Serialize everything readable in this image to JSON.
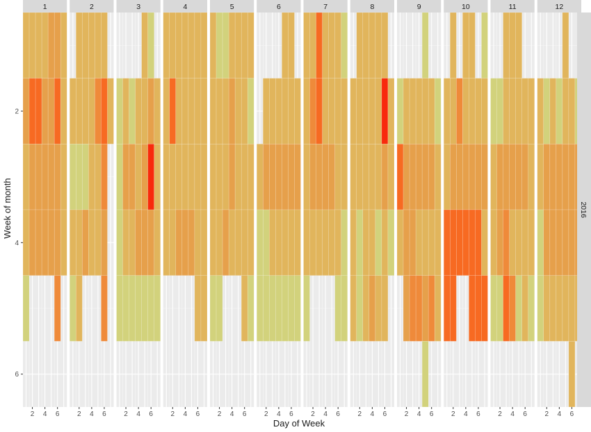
{
  "chart_data": {
    "type": "heatmap",
    "title": "",
    "xlabel": "Day of Week",
    "ylabel": "Week of month",
    "x_range": [
      0.5,
      7.5
    ],
    "y_range": [
      0.5,
      6.5
    ],
    "y_reversed": true,
    "x_ticks": [
      2,
      4,
      6
    ],
    "y_ticks": [
      2,
      4,
      6
    ],
    "grid": true,
    "legend": "none",
    "row_strip_label": "2016",
    "palette": {
      "0": "#bfe08a",
      "1": "#d2d27c",
      "2": "#e1b55c",
      "3": "#e6a04b",
      "4": "#ef8a3a",
      "5": "#f76a22",
      "6": "#f82a0c"
    },
    "panels": [
      {
        "label": "1",
        "grid": [
          "2222332",
          "3553352",
          "2333332",
          "2333332",
          "1000040",
          "0000000"
        ]
      },
      {
        "label": "2",
        "grid": [
          "0222220",
          "2222452",
          "1112240",
          "2232230",
          "1200040",
          "0000000"
        ]
      },
      {
        "label": "3",
        "grid": [
          "0000210",
          "1212232",
          "1332362",
          "1223332",
          "1111111",
          "0000000"
        ]
      },
      {
        "label": "4",
        "grid": [
          "2222222",
          "2522222",
          "2222222",
          "2233322",
          "0000022",
          "0000000"
        ]
      },
      {
        "label": "5",
        "grid": [
          "2112222",
          "2223221",
          "2223222",
          "2232222",
          "1100021",
          "0000000"
        ]
      },
      {
        "label": "6",
        "grid": [
          "0000220",
          "0222222",
          "2333333",
          "1122222",
          "1111111",
          "0000000"
        ]
      },
      {
        "label": "7",
        "grid": [
          "2252221",
          "2452222",
          "2333322",
          "2222221",
          "1000011",
          "0000000"
        ]
      },
      {
        "label": "8",
        "grid": [
          "0222220",
          "2222262",
          "2222232",
          "2122121",
          "2123220",
          "0000000"
        ]
      },
      {
        "label": "9",
        "grid": [
          "0000100",
          "1222221",
          "5333332",
          "2332222",
          "0344342",
          "0000100"
        ]
      },
      {
        "label": "10",
        "grid": [
          "0202201",
          "2242222",
          "2333333",
          "5555552",
          "5500555",
          "0000000"
        ]
      },
      {
        "label": "11",
        "grid": [
          "0022200",
          "1122222",
          "2333332",
          "2342222",
          "1154121",
          "0000000"
        ]
      },
      {
        "label": "12",
        "grid": [
          "0000200",
          "2121221",
          "2333333",
          "1333333",
          "1222222",
          "0000020"
        ]
      }
    ]
  }
}
